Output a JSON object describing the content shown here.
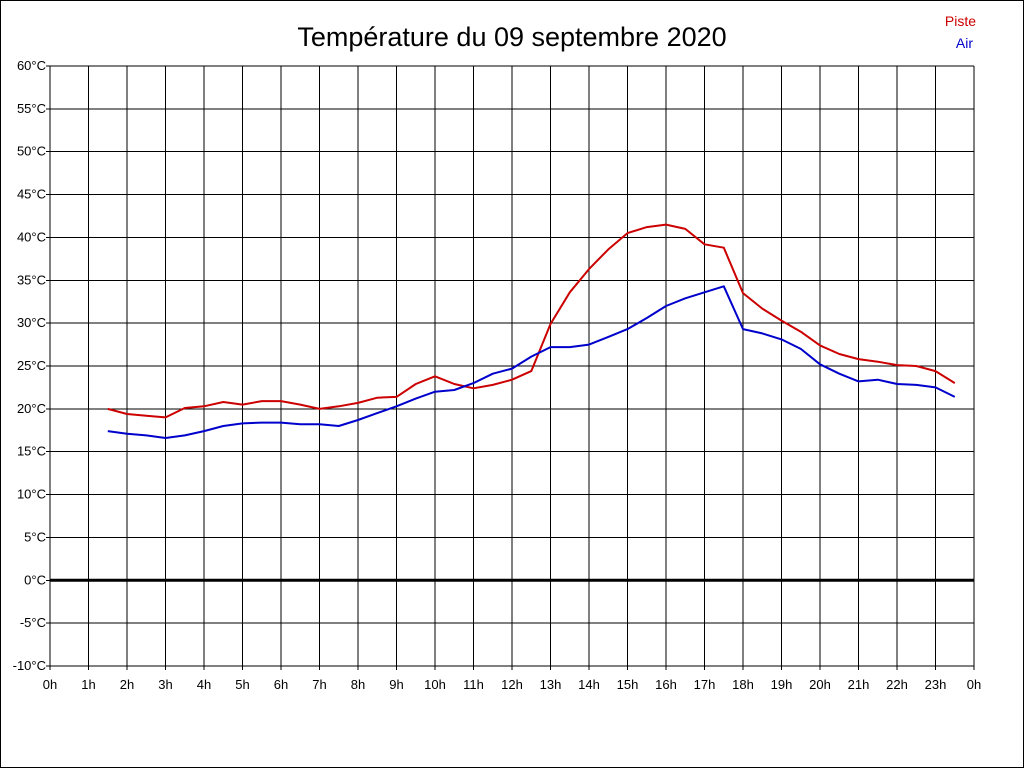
{
  "chart_data": {
    "type": "line",
    "title": "Température du 09 septembre 2020",
    "xlabel": "",
    "ylabel": "",
    "xlim": [
      0,
      24
    ],
    "ylim": [
      -10,
      60
    ],
    "grid": true,
    "legend_position": "top-right",
    "x_tick_labels": [
      "0h",
      "1h",
      "2h",
      "3h",
      "4h",
      "5h",
      "6h",
      "7h",
      "8h",
      "9h",
      "10h",
      "11h",
      "12h",
      "13h",
      "14h",
      "15h",
      "16h",
      "17h",
      "18h",
      "19h",
      "20h",
      "21h",
      "22h",
      "23h",
      "0h"
    ],
    "y_ticks": [
      -10,
      -5,
      0,
      5,
      10,
      15,
      20,
      25,
      30,
      35,
      40,
      45,
      50,
      55,
      60
    ],
    "y_tick_labels": [
      "-10°C",
      "-5°C",
      "0°C",
      "5°C",
      "10°C",
      "15°C",
      "20°C",
      "25°C",
      "30°C",
      "35°C",
      "40°C",
      "45°C",
      "50°C",
      "55°C",
      "60°C"
    ],
    "x": [
      1.5,
      2,
      2.5,
      3,
      3.5,
      4,
      4.5,
      5,
      5.5,
      6,
      6.5,
      7,
      7.5,
      8,
      8.5,
      9,
      9.5,
      10,
      10.5,
      11,
      11.5,
      12,
      12.5,
      13,
      13.5,
      14,
      14.5,
      15,
      15.5,
      16,
      16.5,
      17,
      17.5,
      18,
      18.5,
      19,
      19.5,
      20,
      20.5,
      21,
      21.5,
      22,
      22.5,
      23,
      23.5
    ],
    "series": [
      {
        "name": "Piste",
        "color": "#cc0000",
        "values": [
          20.0,
          19.4,
          19.2,
          19.0,
          20.1,
          20.3,
          20.8,
          20.5,
          20.9,
          20.9,
          20.5,
          20.0,
          20.3,
          20.7,
          21.3,
          21.4,
          22.9,
          23.8,
          22.9,
          22.4,
          22.8,
          23.4,
          24.4,
          29.9,
          33.6,
          36.3,
          38.6,
          40.5,
          41.2,
          41.5,
          41.0,
          39.2,
          38.8,
          33.5,
          31.7,
          30.3,
          29.0,
          27.4,
          26.4,
          25.8,
          25.5,
          25.1,
          25.0,
          24.4,
          23.0
        ]
      },
      {
        "name": "Air",
        "color": "#0000cc",
        "values": [
          17.4,
          17.1,
          16.9,
          16.6,
          16.9,
          17.4,
          18.0,
          18.3,
          18.4,
          18.4,
          18.2,
          18.2,
          18.0,
          18.7,
          19.5,
          20.3,
          21.2,
          22.0,
          22.2,
          23.0,
          24.1,
          24.7,
          26.1,
          27.2,
          27.2,
          27.5,
          28.4,
          29.3,
          30.6,
          32.0,
          32.9,
          33.6,
          34.3,
          29.3,
          28.8,
          28.1,
          27.0,
          25.2,
          24.1,
          23.2,
          23.4,
          22.9,
          22.8,
          22.5,
          21.4
        ]
      }
    ]
  }
}
